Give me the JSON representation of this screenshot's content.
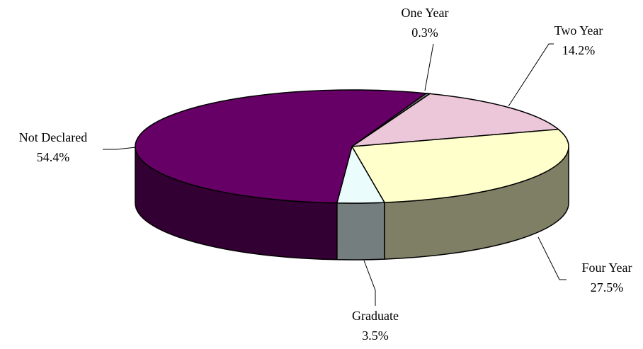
{
  "chart_data": {
    "type": "pie",
    "categories": [
      "One Year",
      "Two Year",
      "Four Year",
      "Graduate",
      "Not Declared"
    ],
    "values": [
      0.3,
      14.2,
      27.5,
      3.5,
      54.4
    ],
    "value_labels": [
      "0.3%",
      "14.2%",
      "27.5%",
      "3.5%",
      "54.4%"
    ],
    "colors": [
      "#707070",
      "#ecc6d9",
      "#ffffcc",
      "#eafcfc",
      "#660066"
    ]
  }
}
